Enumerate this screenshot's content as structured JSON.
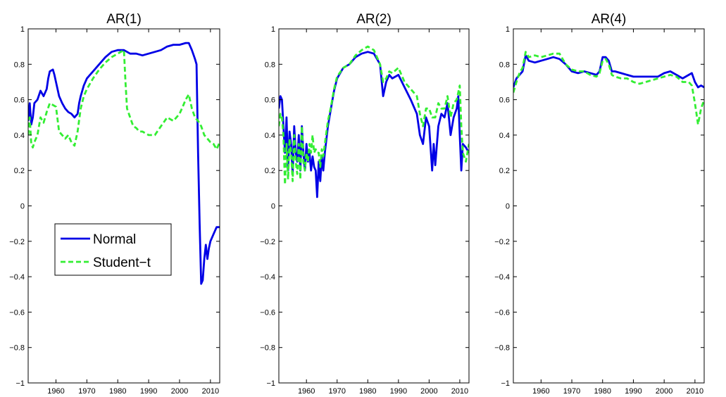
{
  "chart_data": [
    {
      "type": "line",
      "title": "AR(1)",
      "xlabel": "",
      "ylabel": "",
      "xlim": [
        1951,
        2013
      ],
      "ylim": [
        -1,
        1
      ],
      "xticks": [
        1960,
        1970,
        1980,
        1990,
        2000,
        2010
      ],
      "yticks": [
        -1,
        -0.8,
        -0.6,
        -0.4,
        -0.2,
        0,
        0.2,
        0.4,
        0.6,
        0.8,
        1
      ],
      "yticklabels": [
        "−1",
        "−0.8",
        "−0.6",
        "−0.4",
        "−0.2",
        "0",
        "0.2",
        "0.4",
        "0.6",
        "0.8",
        "1"
      ],
      "legend": {
        "location": "inside-left-lower",
        "entries": [
          "Normal",
          "Student−t"
        ]
      },
      "series": [
        {
          "name": "Normal",
          "color": "#0000e6",
          "style": "solid",
          "x": [
            1951,
            1951.5,
            1952,
            1952.5,
            1953,
            1954,
            1955,
            1956,
            1957,
            1957.5,
            1958,
            1959,
            1959.5,
            1960,
            1960.5,
            1961,
            1962,
            1963,
            1964,
            1965,
            1966,
            1967,
            1967.5,
            1968,
            1969,
            1970,
            1971,
            1972,
            1974,
            1976,
            1978,
            1980,
            1982,
            1984,
            1986,
            1988,
            1990,
            1992,
            1994,
            1996,
            1998,
            2000,
            2002,
            2003,
            2004,
            2005,
            2005.5,
            2006,
            2006.5,
            2007,
            2007.5,
            2008,
            2008.5,
            2009,
            2009.5,
            2010,
            2011,
            2012,
            2013
          ],
          "values": [
            0.48,
            0.58,
            0.46,
            0.5,
            0.58,
            0.6,
            0.65,
            0.62,
            0.66,
            0.72,
            0.76,
            0.77,
            0.74,
            0.7,
            0.66,
            0.62,
            0.58,
            0.55,
            0.53,
            0.52,
            0.5,
            0.52,
            0.58,
            0.62,
            0.68,
            0.72,
            0.74,
            0.76,
            0.8,
            0.84,
            0.87,
            0.88,
            0.88,
            0.86,
            0.86,
            0.85,
            0.86,
            0.87,
            0.88,
            0.9,
            0.91,
            0.91,
            0.92,
            0.92,
            0.88,
            0.83,
            0.8,
            0.3,
            -0.1,
            -0.44,
            -0.42,
            -0.3,
            -0.22,
            -0.3,
            -0.24,
            -0.2,
            -0.16,
            -0.12,
            -0.12
          ]
        },
        {
          "name": "Student−t",
          "color": "#33ee33",
          "style": "dashed",
          "x": [
            1951,
            1951.5,
            1952,
            1952.5,
            1953,
            1954,
            1955,
            1956,
            1957,
            1958,
            1959,
            1960,
            1961,
            1962,
            1963,
            1964,
            1965,
            1966,
            1967,
            1968,
            1969,
            1970,
            1972,
            1974,
            1976,
            1978,
            1980,
            1981,
            1982,
            1982.5,
            1983,
            1984,
            1985,
            1986,
            1987,
            1988,
            1990,
            1992,
            1994,
            1996,
            1998,
            2000,
            2001,
            2002,
            2003,
            2004,
            2005,
            2006,
            2007,
            2008,
            2009,
            2010,
            2011,
            2012,
            2013
          ],
          "values": [
            0.4,
            0.5,
            0.35,
            0.33,
            0.36,
            0.4,
            0.5,
            0.47,
            0.53,
            0.58,
            0.57,
            0.56,
            0.42,
            0.4,
            0.38,
            0.4,
            0.36,
            0.34,
            0.42,
            0.55,
            0.62,
            0.66,
            0.72,
            0.77,
            0.81,
            0.84,
            0.86,
            0.87,
            0.88,
            0.7,
            0.55,
            0.5,
            0.45,
            0.44,
            0.42,
            0.42,
            0.4,
            0.4,
            0.45,
            0.5,
            0.48,
            0.52,
            0.56,
            0.6,
            0.63,
            0.55,
            0.5,
            0.48,
            0.45,
            0.4,
            0.38,
            0.36,
            0.35,
            0.32,
            0.36
          ]
        }
      ]
    },
    {
      "type": "line",
      "title": "AR(2)",
      "xlabel": "",
      "ylabel": "",
      "xlim": [
        1951,
        2013
      ],
      "ylim": [
        -1,
        1
      ],
      "xticks": [
        1960,
        1970,
        1980,
        1990,
        2000,
        2010
      ],
      "yticks": [
        -1,
        -0.8,
        -0.6,
        -0.4,
        -0.2,
        0,
        0.2,
        0.4,
        0.6,
        0.8,
        1
      ],
      "yticklabels": [
        "−1",
        "−0.8",
        "−0.6",
        "−0.4",
        "−0.2",
        "0",
        "0.2",
        "0.4",
        "0.6",
        "0.8",
        "1"
      ],
      "series": [
        {
          "name": "Normal",
          "color": "#0000e6",
          "style": "solid",
          "x": [
            1951,
            1951.5,
            1952,
            1952.5,
            1953,
            1953.5,
            1954,
            1954.5,
            1955,
            1955.5,
            1956,
            1956.5,
            1957,
            1957.5,
            1958,
            1958.5,
            1959,
            1959.5,
            1960,
            1960.5,
            1961,
            1961.5,
            1962,
            1962.5,
            1963,
            1963.5,
            1964,
            1964.5,
            1965,
            1965.5,
            1966,
            1967,
            1968,
            1969,
            1970,
            1972,
            1974,
            1976,
            1978,
            1980,
            1982,
            1984,
            1985,
            1986,
            1987,
            1988,
            1990,
            1992,
            1994,
            1996,
            1997,
            1998,
            1999,
            2000,
            2001,
            2001.5,
            2002,
            2003,
            2004,
            2005,
            2006,
            2007,
            2008,
            2009,
            2009.5,
            2010,
            2010.5,
            2011,
            2012,
            2013
          ],
          "values": [
            0.55,
            0.62,
            0.6,
            0.45,
            0.3,
            0.5,
            0.2,
            0.42,
            0.35,
            0.18,
            0.45,
            0.3,
            0.25,
            0.4,
            0.2,
            0.45,
            0.3,
            0.2,
            0.35,
            0.25,
            0.3,
            0.2,
            0.28,
            0.22,
            0.2,
            0.05,
            0.25,
            0.14,
            0.28,
            0.2,
            0.3,
            0.45,
            0.55,
            0.65,
            0.72,
            0.78,
            0.8,
            0.84,
            0.86,
            0.87,
            0.86,
            0.8,
            0.62,
            0.7,
            0.74,
            0.72,
            0.74,
            0.67,
            0.6,
            0.52,
            0.4,
            0.35,
            0.5,
            0.45,
            0.2,
            0.35,
            0.23,
            0.45,
            0.52,
            0.5,
            0.58,
            0.4,
            0.5,
            0.55,
            0.62,
            0.4,
            0.2,
            0.35,
            0.33,
            0.3
          ]
        },
        {
          "name": "Student−t",
          "color": "#33ee33",
          "style": "dashed",
          "x": [
            1951,
            1951.5,
            1952,
            1952.5,
            1953,
            1953.5,
            1954,
            1954.5,
            1955,
            1955.5,
            1956,
            1956.5,
            1957,
            1957.5,
            1958,
            1958.5,
            1959,
            1959.5,
            1960,
            1960.5,
            1961,
            1961.5,
            1962,
            1962.5,
            1963,
            1963.5,
            1964,
            1964.5,
            1965,
            1965.5,
            1966,
            1967,
            1968,
            1969,
            1970,
            1972,
            1974,
            1976,
            1978,
            1980,
            1982,
            1984,
            1985,
            1986,
            1987,
            1988,
            1990,
            1992,
            1994,
            1996,
            1997,
            1998,
            1999,
            2000,
            2001,
            2002,
            2003,
            2004,
            2005,
            2006,
            2007,
            2008,
            2009,
            2010,
            2010.5,
            2011,
            2012,
            2013
          ],
          "values": [
            0.45,
            0.52,
            0.5,
            0.4,
            0.12,
            0.35,
            0.15,
            0.38,
            0.3,
            0.14,
            0.4,
            0.25,
            0.18,
            0.35,
            0.15,
            0.45,
            0.25,
            0.2,
            0.3,
            0.25,
            0.35,
            0.3,
            0.4,
            0.3,
            0.32,
            0.3,
            0.3,
            0.22,
            0.32,
            0.28,
            0.35,
            0.48,
            0.56,
            0.66,
            0.73,
            0.78,
            0.8,
            0.85,
            0.88,
            0.9,
            0.88,
            0.8,
            0.7,
            0.72,
            0.76,
            0.75,
            0.78,
            0.7,
            0.66,
            0.62,
            0.52,
            0.45,
            0.55,
            0.55,
            0.5,
            0.5,
            0.58,
            0.55,
            0.55,
            0.62,
            0.5,
            0.58,
            0.6,
            0.68,
            0.45,
            0.3,
            0.25,
            0.35
          ]
        }
      ]
    },
    {
      "type": "line",
      "title": "AR(4)",
      "xlabel": "",
      "ylabel": "",
      "xlim": [
        1951,
        2013
      ],
      "ylim": [
        -1,
        1
      ],
      "xticks": [
        1960,
        1970,
        1980,
        1990,
        2000,
        2010
      ],
      "yticks": [
        -1,
        -0.8,
        -0.6,
        -0.4,
        -0.2,
        0,
        0.2,
        0.4,
        0.6,
        0.8,
        1
      ],
      "yticklabels": [
        "−1",
        "−0.8",
        "−0.6",
        "−0.4",
        "−0.2",
        "0",
        "0.2",
        "0.4",
        "0.6",
        "0.8",
        "1"
      ],
      "series": [
        {
          "name": "Normal",
          "color": "#0000e6",
          "style": "solid",
          "x": [
            1951,
            1952,
            1953,
            1954,
            1955,
            1956,
            1958,
            1960,
            1962,
            1964,
            1966,
            1968,
            1970,
            1972,
            1974,
            1976,
            1978,
            1979,
            1980,
            1981,
            1982,
            1983,
            1984,
            1986,
            1988,
            1990,
            1992,
            1994,
            1996,
            1998,
            2000,
            2002,
            2004,
            2006,
            2008,
            2009,
            2010,
            2011,
            2012,
            2013
          ],
          "values": [
            0.67,
            0.72,
            0.74,
            0.76,
            0.85,
            0.82,
            0.81,
            0.82,
            0.83,
            0.84,
            0.83,
            0.8,
            0.76,
            0.75,
            0.76,
            0.75,
            0.74,
            0.76,
            0.84,
            0.84,
            0.82,
            0.76,
            0.76,
            0.75,
            0.74,
            0.73,
            0.73,
            0.73,
            0.73,
            0.73,
            0.75,
            0.76,
            0.74,
            0.72,
            0.74,
            0.75,
            0.7,
            0.67,
            0.68,
            0.67
          ]
        },
        {
          "name": "Student−t",
          "color": "#33ee33",
          "style": "dashed",
          "x": [
            1951,
            1952,
            1953,
            1954,
            1955,
            1956,
            1958,
            1960,
            1962,
            1964,
            1966,
            1968,
            1970,
            1972,
            1974,
            1976,
            1978,
            1979,
            1980,
            1981,
            1982,
            1983,
            1984,
            1986,
            1988,
            1990,
            1992,
            1994,
            1996,
            1998,
            2000,
            2002,
            2004,
            2006,
            2008,
            2009,
            2010,
            2011,
            2012,
            2013
          ],
          "values": [
            0.64,
            0.7,
            0.75,
            0.78,
            0.87,
            0.84,
            0.85,
            0.84,
            0.85,
            0.86,
            0.86,
            0.8,
            0.77,
            0.76,
            0.76,
            0.74,
            0.73,
            0.75,
            0.82,
            0.83,
            0.8,
            0.74,
            0.73,
            0.72,
            0.72,
            0.7,
            0.69,
            0.7,
            0.71,
            0.72,
            0.73,
            0.74,
            0.73,
            0.7,
            0.7,
            0.68,
            0.58,
            0.46,
            0.55,
            0.6
          ]
        }
      ]
    }
  ]
}
